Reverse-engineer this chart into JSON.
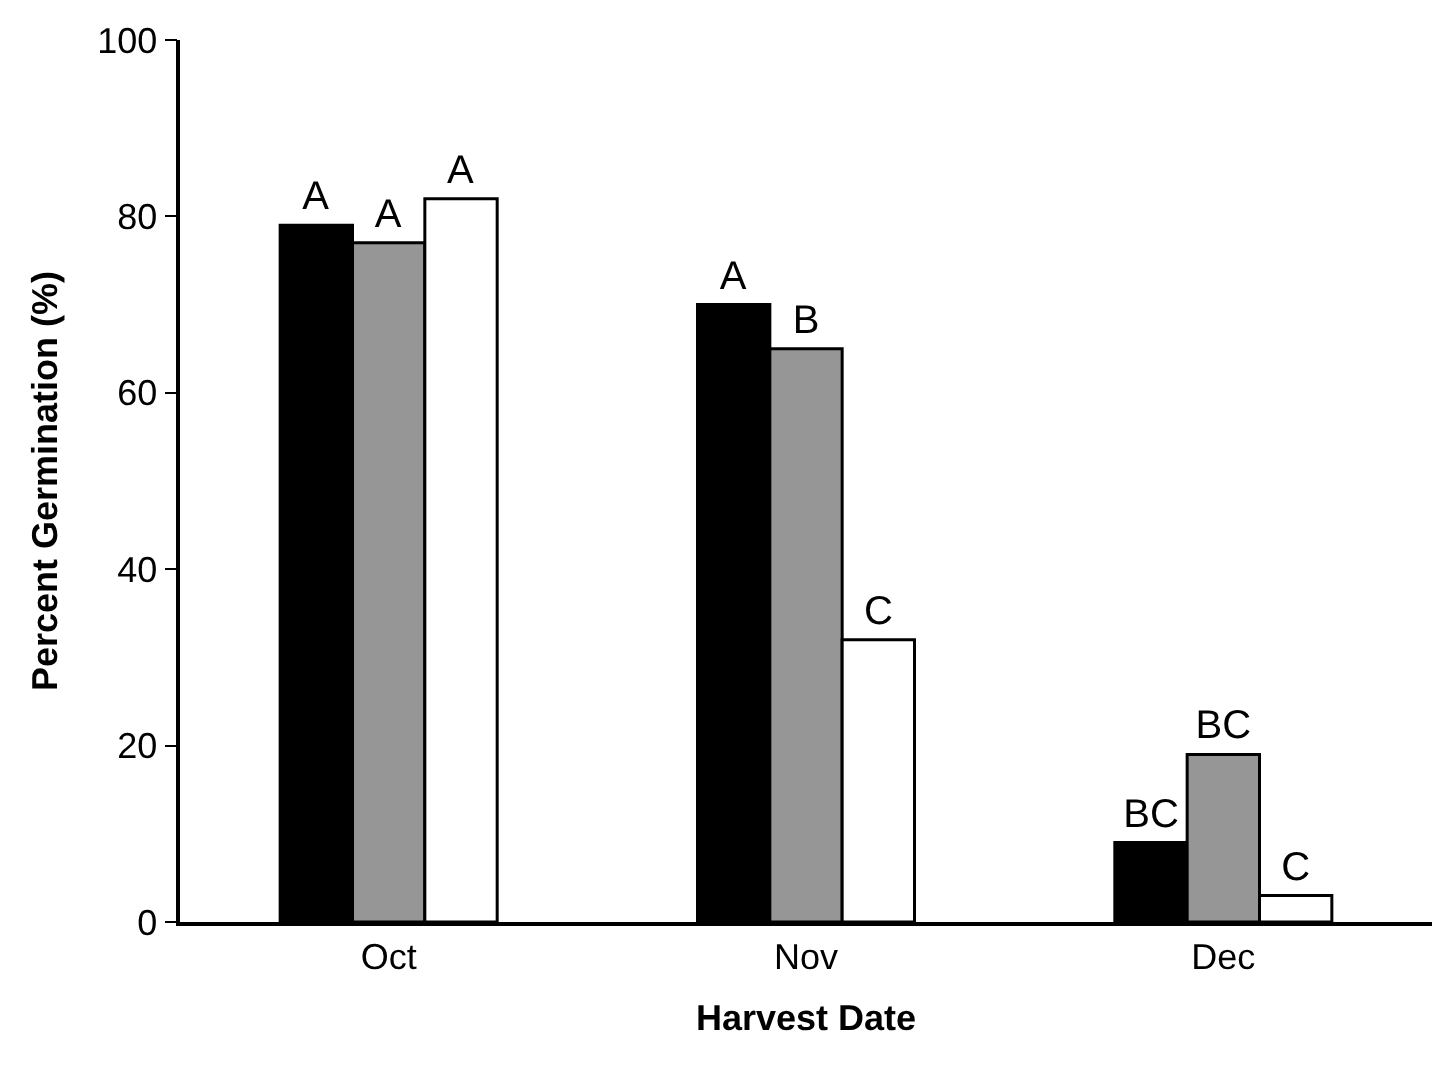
{
  "chart_data": {
    "type": "bar",
    "xlabel": "Harvest Date",
    "ylabel": "Percent Germination (%)",
    "categories": [
      "Oct",
      "Nov",
      "Dec"
    ],
    "series": [
      {
        "color": "#000000",
        "values": [
          79,
          70,
          9
        ],
        "value_labels": [
          "A",
          "A",
          "BC"
        ]
      },
      {
        "color": "#969696",
        "values": [
          77,
          65,
          19
        ],
        "value_labels": [
          "A",
          "B",
          "BC"
        ]
      },
      {
        "color": "#ffffff",
        "values": [
          82,
          32,
          3
        ],
        "value_labels": [
          "A",
          "C",
          "C"
        ]
      }
    ],
    "ylim": [
      0,
      100
    ],
    "yticks": [
      0,
      20,
      40,
      60,
      80,
      100
    ]
  }
}
